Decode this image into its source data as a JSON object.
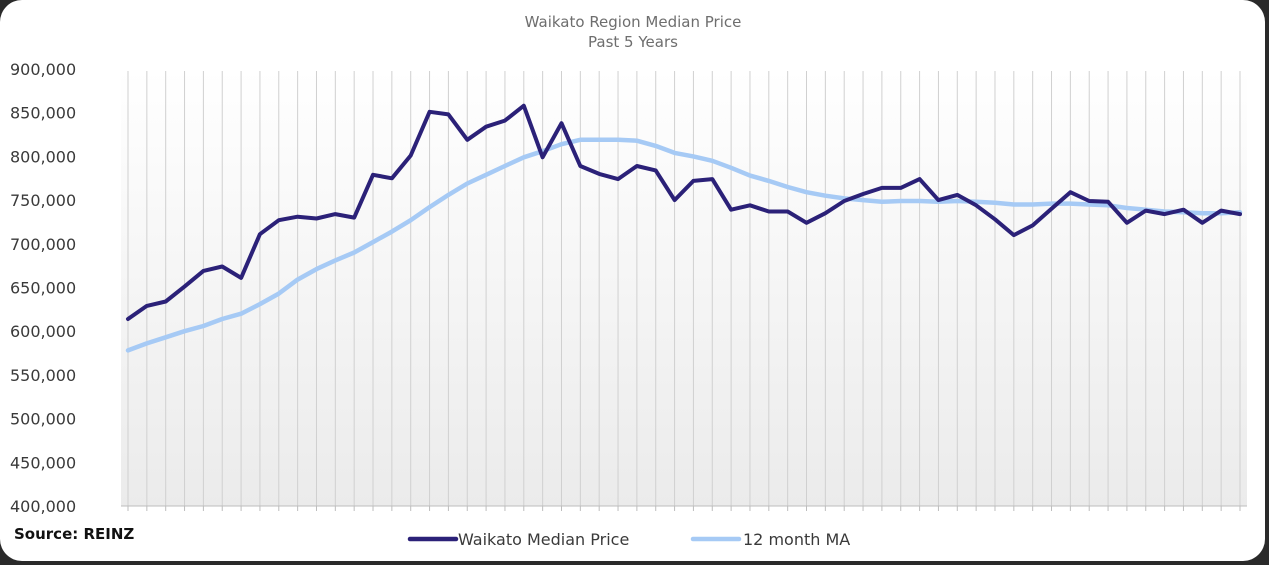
{
  "chart_data": {
    "type": "line",
    "title": "Waikato Region Median Price",
    "subtitle": "Past 5 Years",
    "xlabel": "",
    "ylabel": "",
    "ylim": [
      400000,
      900000
    ],
    "yticks": [
      "900,000",
      "850,000",
      "800,000",
      "750,000",
      "700,000",
      "650,000",
      "600,000",
      "550,000",
      "500,000",
      "450,000",
      "400,000"
    ],
    "ytick_values": [
      900000,
      850000,
      800000,
      750000,
      700000,
      650000,
      600000,
      550000,
      500000,
      450000,
      400000
    ],
    "grid": "vertical",
    "legend_position": "bottom",
    "series": [
      {
        "name": "Waikato Median Price",
        "color": "#2b2178",
        "values": [
          614000,
          629000,
          634000,
          651000,
          669000,
          674000,
          661000,
          711000,
          727000,
          731000,
          729000,
          734000,
          730000,
          779000,
          775000,
          801000,
          851000,
          848000,
          819000,
          834000,
          841000,
          858000,
          799000,
          838000,
          789000,
          780000,
          774000,
          789000,
          784000,
          750000,
          772000,
          774000,
          739000,
          744000,
          737000,
          737000,
          724000,
          735000,
          749000,
          757000,
          764000,
          764000,
          774000,
          750000,
          756000,
          744000,
          728000,
          710000,
          721000,
          740000,
          759000,
          749000,
          748000,
          724000,
          738000,
          734000,
          739000,
          724000,
          738000,
          734000
        ]
      },
      {
        "name": "12 month MA",
        "color": "#a6caf5",
        "values": [
          578000,
          586000,
          593000,
          600000,
          606000,
          614000,
          620000,
          631000,
          643000,
          659000,
          671000,
          681000,
          690000,
          702000,
          714000,
          727000,
          742000,
          756000,
          769000,
          779000,
          789000,
          799000,
          806000,
          814000,
          819000,
          819000,
          819000,
          818000,
          812000,
          804000,
          800000,
          795000,
          787000,
          778000,
          772000,
          765000,
          759000,
          755000,
          752000,
          750000,
          748000,
          749000,
          749000,
          748000,
          749000,
          748000,
          747000,
          745000,
          745000,
          746000,
          746000,
          745000,
          744000,
          741000,
          739000,
          737000,
          736000,
          735000,
          735000,
          736000
        ]
      }
    ],
    "source": "Source: REINZ"
  }
}
